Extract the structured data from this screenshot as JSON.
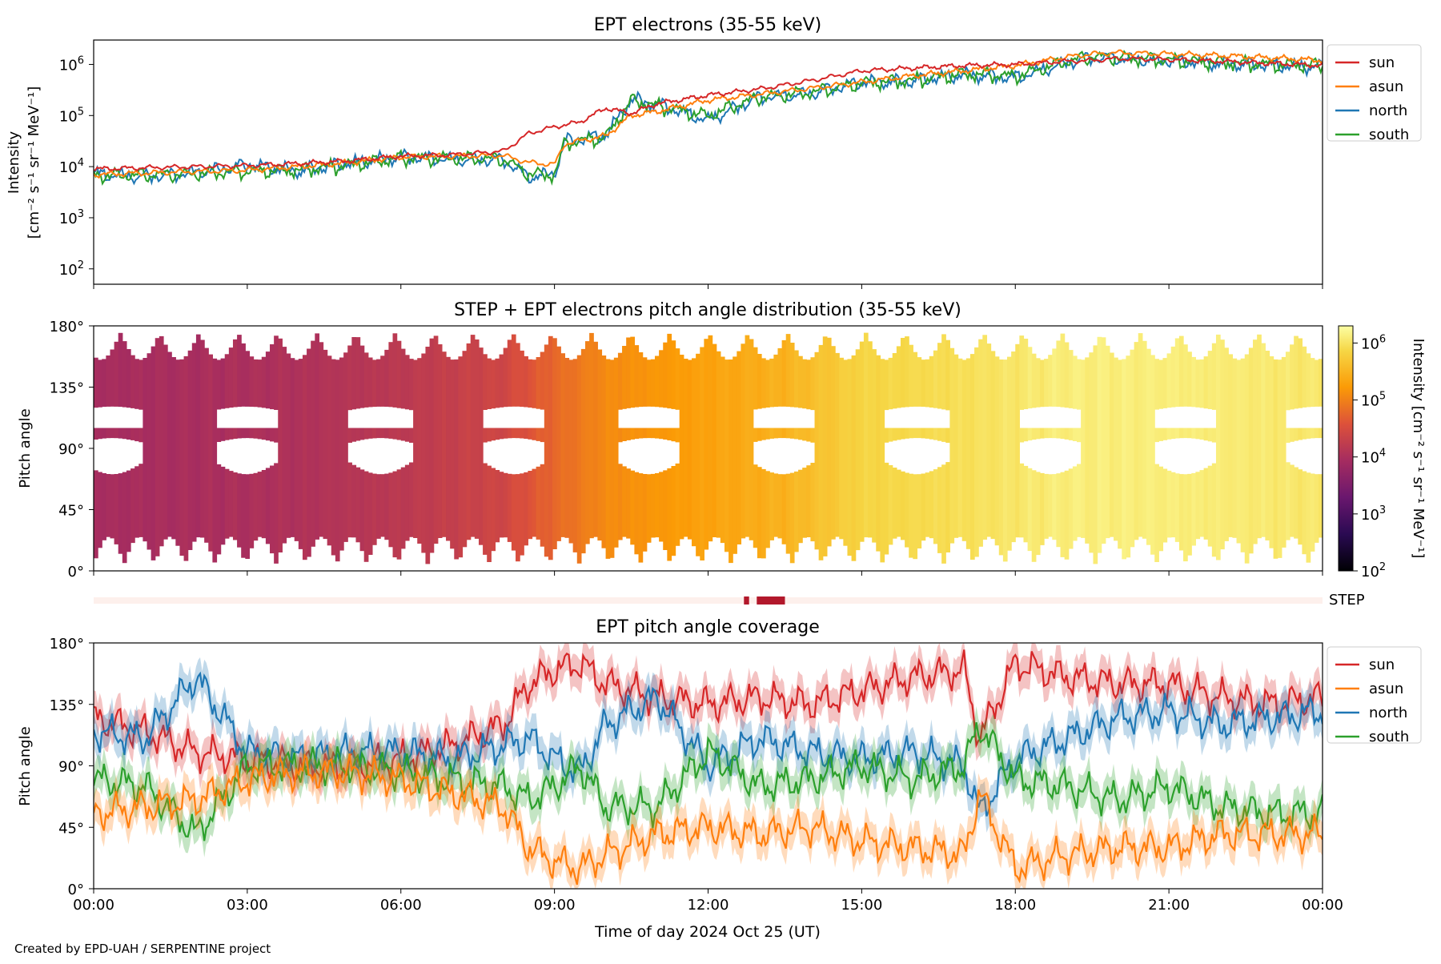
{
  "footer": "Created by EPD-UAH / SERPENTINE project",
  "xaxis": {
    "label": "Time of day 2024 Oct 25 (UT)",
    "ticks": [
      "00:00",
      "03:00",
      "06:00",
      "09:00",
      "12:00",
      "15:00",
      "18:00",
      "21:00",
      "00:00"
    ],
    "range_hours": [
      0,
      24
    ]
  },
  "colors": {
    "sun": "#d62728",
    "asun": "#ff7f0e",
    "north": "#1f77b4",
    "south": "#2ca02c",
    "step_bar": "#b2182b",
    "step_track": "#fdf0ec"
  },
  "chart_data": [
    {
      "type": "line",
      "title": "EPT electrons (35-55 keV)",
      "ylabel_line1": "Intensity",
      "ylabel_line2": "[cm⁻² s⁻¹ sr⁻¹ MeV⁻¹]",
      "yscale": "log",
      "ylim": [
        50,
        3000000
      ],
      "yticks": [
        {
          "base": "10",
          "exp": "2",
          "value": 100
        },
        {
          "base": "10",
          "exp": "3",
          "value": 1000
        },
        {
          "base": "10",
          "exp": "4",
          "value": 10000
        },
        {
          "base": "10",
          "exp": "5",
          "value": 100000
        },
        {
          "base": "10",
          "exp": "6",
          "value": 1000000
        }
      ],
      "legend": [
        "sun",
        "asun",
        "north",
        "south"
      ],
      "series": [
        {
          "name": "sun",
          "x": [
            0,
            1,
            2,
            3,
            4,
            5,
            6,
            7,
            8,
            8.5,
            9,
            9.5,
            10,
            10.5,
            11,
            12,
            13,
            14,
            15,
            16,
            17,
            18,
            19,
            19.5,
            20,
            21,
            22,
            23,
            24
          ],
          "y": [
            9000,
            9500,
            10000,
            10500,
            11500,
            13000,
            16000,
            17000,
            20000,
            45000,
            60000,
            75000,
            140000,
            110000,
            170000,
            250000,
            330000,
            480000,
            750000,
            850000,
            950000,
            1000000,
            1150000,
            1200000,
            1300000,
            1250000,
            1150000,
            1050000,
            950000
          ]
        },
        {
          "name": "asun",
          "x": [
            0,
            1,
            2,
            3,
            4,
            5,
            6,
            7,
            8,
            8.5,
            9,
            9.2,
            10,
            10.5,
            11,
            12,
            13,
            14,
            15,
            16,
            17,
            18,
            19,
            19.5,
            20,
            21,
            22,
            23,
            24
          ],
          "y": [
            7000,
            7500,
            8000,
            8500,
            10000,
            12000,
            15500,
            16000,
            16500,
            12000,
            11000,
            28000,
            40000,
            100000,
            120000,
            200000,
            260000,
            340000,
            450000,
            600000,
            750000,
            950000,
            1400000,
            1600000,
            1700000,
            1600000,
            1500000,
            1350000,
            1200000
          ]
        },
        {
          "name": "north",
          "x": [
            0,
            1,
            2,
            3,
            4,
            5,
            6,
            7,
            8,
            8.5,
            9,
            9.2,
            10,
            10.5,
            11,
            12,
            13,
            14,
            15,
            16,
            17,
            18,
            19,
            19.5,
            20,
            21,
            22,
            23,
            24
          ],
          "y": [
            8000,
            7000,
            8500,
            12000,
            9000,
            13000,
            17000,
            15500,
            15000,
            7000,
            8000,
            35000,
            45000,
            230000,
            180000,
            90000,
            250000,
            300000,
            500000,
            520000,
            700000,
            600000,
            1200000,
            1500000,
            1450000,
            1300000,
            1150000,
            1050000,
            1000000
          ]
        },
        {
          "name": "south",
          "x": [
            0,
            1,
            2,
            3,
            4,
            5,
            6,
            7,
            8,
            8.5,
            9,
            9.2,
            10,
            10.5,
            11,
            12,
            13,
            14,
            15,
            16,
            17,
            18,
            19,
            19.5,
            20,
            21,
            22,
            23,
            24
          ],
          "y": [
            7500,
            7500,
            8000,
            9000,
            9500,
            12000,
            16000,
            16000,
            15500,
            8000,
            7500,
            32000,
            42000,
            220000,
            170000,
            110000,
            250000,
            310000,
            480000,
            540000,
            720000,
            650000,
            1250000,
            1550000,
            1500000,
            1350000,
            1200000,
            1100000,
            1050000
          ]
        }
      ]
    },
    {
      "type": "heatmap",
      "title": "STEP + EPT electrons pitch angle distribution (35-55 keV)",
      "ylabel": "Pitch angle",
      "yticks": [
        "0°",
        "45°",
        "90°",
        "135°",
        "180°"
      ],
      "ylim": [
        0,
        180
      ],
      "colorbar": {
        "label": "Intensity [cm⁻² s⁻¹ sr⁻¹ MeV⁻¹]",
        "scale": "log",
        "range": [
          100,
          2000000
        ],
        "ticks": [
          {
            "base": "10",
            "exp": "2"
          },
          {
            "base": "10",
            "exp": "3"
          },
          {
            "base": "10",
            "exp": "4"
          },
          {
            "base": "10",
            "exp": "5"
          },
          {
            "base": "10",
            "exp": "6"
          }
        ],
        "colormap": "inferno"
      },
      "intensity_by_hour": [
        {
          "hour": 0,
          "intensity": 9000
        },
        {
          "hour": 2,
          "intensity": 9500
        },
        {
          "hour": 4,
          "intensity": 11000
        },
        {
          "hour": 6,
          "intensity": 15000
        },
        {
          "hour": 8,
          "intensity": 25000
        },
        {
          "hour": 9,
          "intensity": 60000
        },
        {
          "hour": 10,
          "intensity": 120000
        },
        {
          "hour": 12,
          "intensity": 200000
        },
        {
          "hour": 13.5,
          "intensity": 300000
        },
        {
          "hour": 15,
          "intensity": 700000
        },
        {
          "hour": 17,
          "intensity": 900000
        },
        {
          "hour": 19,
          "intensity": 1300000
        },
        {
          "hour": 21,
          "intensity": 1300000
        },
        {
          "hour": 24,
          "intensity": 1100000
        }
      ]
    },
    {
      "type": "bar",
      "label": "STEP",
      "segments_hours": [
        [
          12.7,
          12.8
        ],
        [
          12.95,
          13.5
        ]
      ]
    },
    {
      "type": "line",
      "title": "EPT pitch angle coverage",
      "ylabel": "Pitch angle",
      "yticks": [
        "0°",
        "45°",
        "90°",
        "135°",
        "180°"
      ],
      "ylim": [
        0,
        180
      ],
      "legend": [
        "sun",
        "asun",
        "north",
        "south"
      ],
      "series": [
        {
          "name": "sun",
          "x": [
            0,
            1,
            2,
            3,
            4,
            5,
            6,
            7,
            8,
            8.5,
            9,
            9.5,
            10,
            11,
            12,
            13,
            14,
            15,
            16,
            17,
            17.3,
            18,
            19,
            20,
            21,
            22,
            23,
            24
          ],
          "y": [
            125,
            115,
            100,
            95,
            90,
            90,
            95,
            105,
            120,
            150,
            160,
            165,
            150,
            140,
            135,
            140,
            135,
            145,
            155,
            160,
            110,
            165,
            155,
            150,
            150,
            140,
            135,
            140
          ]
        },
        {
          "name": "asun",
          "x": [
            0,
            1,
            2,
            3,
            4,
            5,
            6,
            7,
            8,
            8.5,
            9,
            9.5,
            10,
            11,
            12,
            13,
            14,
            15,
            16,
            17,
            17.3,
            18,
            19,
            20,
            21,
            22,
            23,
            24
          ],
          "y": [
            55,
            60,
            65,
            80,
            85,
            85,
            80,
            70,
            60,
            30,
            20,
            15,
            25,
            40,
            45,
            40,
            45,
            35,
            30,
            25,
            70,
            15,
            25,
            30,
            30,
            40,
            40,
            40
          ]
        },
        {
          "name": "north",
          "x": [
            0,
            1,
            2,
            3,
            4,
            5,
            6,
            7,
            8,
            8.5,
            9,
            9.5,
            10,
            11,
            12,
            13,
            14,
            15,
            16,
            17,
            17.3,
            18,
            19,
            20,
            21,
            22,
            23,
            24
          ],
          "y": [
            115,
            110,
            155,
            100,
            95,
            100,
            100,
            95,
            105,
            110,
            95,
            85,
            120,
            140,
            90,
            110,
            100,
            95,
            100,
            90,
            55,
            95,
            110,
            125,
            130,
            120,
            125,
            130
          ]
        },
        {
          "name": "south",
          "x": [
            0,
            1,
            2,
            3,
            4,
            5,
            6,
            7,
            8,
            8.5,
            9,
            9.5,
            10,
            11,
            12,
            13,
            14,
            15,
            16,
            17,
            17.3,
            18,
            19,
            20,
            21,
            22,
            23,
            24
          ],
          "y": [
            80,
            75,
            40,
            90,
            90,
            90,
            85,
            80,
            75,
            65,
            75,
            90,
            60,
            60,
            100,
            75,
            80,
            90,
            80,
            90,
            120,
            80,
            75,
            65,
            75,
            60,
            55,
            55
          ]
        }
      ]
    }
  ]
}
